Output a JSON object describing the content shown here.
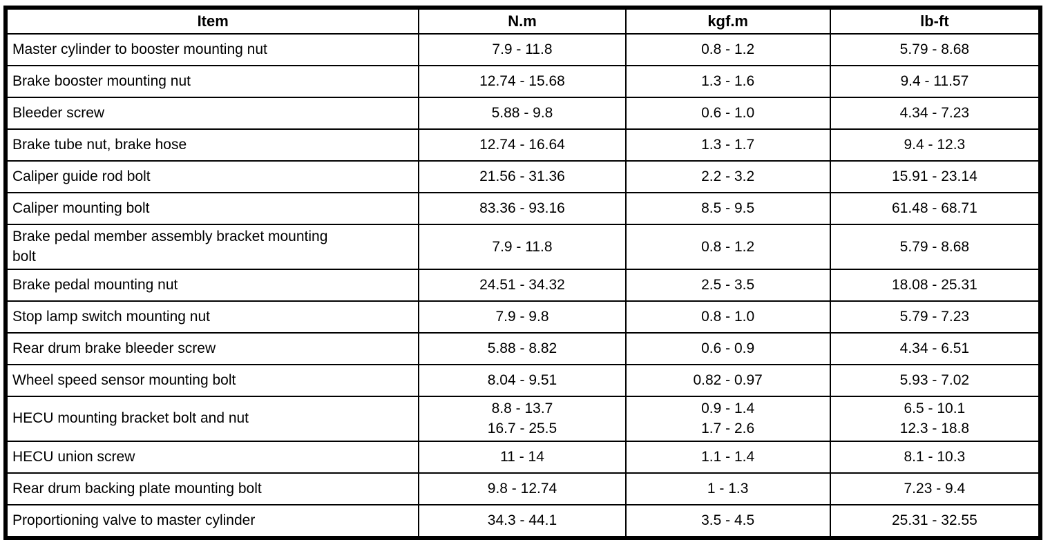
{
  "table": {
    "columns": [
      "Item",
      "N.m",
      "kgf.m",
      "lb-ft"
    ],
    "rows": [
      {
        "item": "Master cylinder to booster mounting nut",
        "nm": "7.9 - 11.8",
        "kgfm": "0.8 - 1.2",
        "lbft": "5.79 - 8.68"
      },
      {
        "item": "Brake booster mounting nut",
        "nm": "12.74 - 15.68",
        "kgfm": "1.3 - 1.6",
        "lbft": "9.4 - 11.57"
      },
      {
        "item": "Bleeder screw",
        "nm": "5.88 - 9.8",
        "kgfm": "0.6 - 1.0",
        "lbft": "4.34 - 7.23"
      },
      {
        "item": "Brake tube nut, brake hose",
        "nm": "12.74 - 16.64",
        "kgfm": "1.3 - 1.7",
        "lbft": "9.4 - 12.3"
      },
      {
        "item": "Caliper guide rod bolt",
        "nm": "21.56 - 31.36",
        "kgfm": "2.2 - 3.2",
        "lbft": "15.91 - 23.14"
      },
      {
        "item": "Caliper mounting bolt",
        "nm": "83.36 - 93.16",
        "kgfm": "8.5 - 9.5",
        "lbft": "61.48 - 68.71"
      },
      {
        "item": "Brake pedal member assembly bracket mounting\nbolt",
        "nm": "7.9 - 11.8",
        "kgfm": "0.8 - 1.2",
        "lbft": "5.79 - 8.68"
      },
      {
        "item": "Brake pedal mounting nut",
        "nm": "24.51 - 34.32",
        "kgfm": "2.5 - 3.5",
        "lbft": "18.08 - 25.31"
      },
      {
        "item": "Stop lamp switch mounting nut",
        "nm": "7.9 - 9.8",
        "kgfm": "0.8 - 1.0",
        "lbft": "5.79 - 7.23"
      },
      {
        "item": "Rear drum brake bleeder screw",
        "nm": "5.88 - 8.82",
        "kgfm": "0.6 - 0.9",
        "lbft": "4.34 - 6.51"
      },
      {
        "item": "Wheel speed sensor mounting bolt",
        "nm": "8.04 - 9.51",
        "kgfm": "0.82 - 0.97",
        "lbft": "5.93 - 7.02"
      },
      {
        "item": "HECU mounting bracket bolt and nut",
        "nm": "8.8 - 13.7\n16.7 - 25.5",
        "kgfm": "0.9 - 1.4\n1.7 - 2.6",
        "lbft": "6.5 - 10.1\n12.3 - 18.8"
      },
      {
        "item": "HECU union screw",
        "nm": "11 - 14",
        "kgfm": "1.1 - 1.4",
        "lbft": "8.1 - 10.3"
      },
      {
        "item": "Rear drum backing plate mounting bolt",
        "nm": "9.8 - 12.74",
        "kgfm": "1 - 1.3",
        "lbft": "7.23 - 9.4"
      },
      {
        "item": "Proportioning valve to master cylinder",
        "nm": "34.3 - 44.1",
        "kgfm": "3.5 - 4.5",
        "lbft": "25.31 - 32.55"
      }
    ]
  },
  "colors": {
    "border": "#000000",
    "text": "#000000",
    "background": "#ffffff"
  }
}
